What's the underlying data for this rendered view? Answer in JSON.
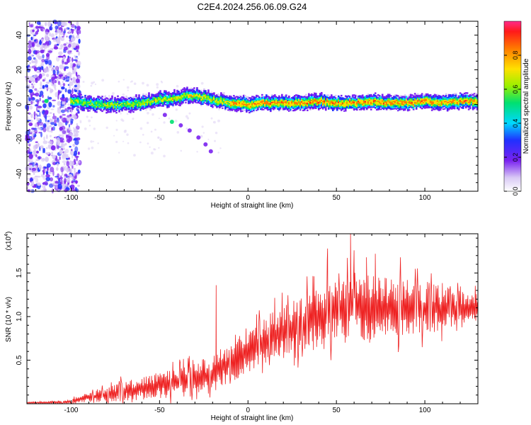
{
  "title": "C2E4.2024.256.06.09.G24",
  "chart_data": [
    {
      "type": "heatmap",
      "xlabel": "Height of straight line (km)",
      "ylabel": "Frequency (Hz)",
      "xlim": [
        -125,
        130
      ],
      "ylim": [
        -50,
        48
      ],
      "xticks": [
        -100,
        -50,
        0,
        50,
        100
      ],
      "yticks": [
        -40,
        -20,
        0,
        20,
        40
      ],
      "colorbar": {
        "label": "Normalized spectral amplitude",
        "range": [
          0,
          1
        ],
        "ticks": [
          "0.0",
          "0.2",
          "0.4",
          "0.6",
          "0.8"
        ]
      },
      "main_track": {
        "x": [
          -100,
          -90,
          -80,
          -70,
          -60,
          -50,
          -45,
          -40,
          -35,
          -30,
          -25,
          -20,
          -15,
          -10,
          0,
          10,
          20,
          30,
          40,
          50,
          60,
          70,
          80,
          90,
          100,
          110,
          120,
          130
        ],
        "y": [
          2,
          1,
          0,
          0,
          1,
          3,
          3,
          4,
          5,
          5,
          4,
          3,
          2,
          1,
          0,
          1,
          1,
          1,
          2,
          1,
          1,
          2,
          1,
          1,
          2,
          1,
          2,
          2
        ]
      },
      "secondary_track": {
        "x": [
          -47,
          -43,
          -38,
          -33,
          -28,
          -24,
          -21
        ],
        "y": [
          -6,
          -10,
          -12,
          -15,
          -19,
          -23,
          -27
        ]
      }
    },
    {
      "type": "line",
      "xlabel": "Height of straight line (km)",
      "ylabel": "SNR (10 * v/v)",
      "y_multiplier": "(x10",
      "y_multiplier_exp": "4",
      "y_multiplier_close": ")",
      "xlim": [
        -125,
        130
      ],
      "ylim": [
        0,
        1.95
      ],
      "xticks": [
        -100,
        -50,
        0,
        50,
        100
      ],
      "yticks": [
        "0.5",
        "1.0",
        "1.5"
      ],
      "ytick_values": [
        0.5,
        1.0,
        1.5
      ],
      "series": [
        {
          "color": "#ee2222",
          "envelope_x": [
            -125,
            -100,
            -95,
            -80,
            -60,
            -40,
            -30,
            -20,
            -10,
            0,
            10,
            20,
            30,
            40,
            50,
            60,
            70,
            80,
            90,
            100,
            110,
            120,
            130
          ],
          "envelope_mean": [
            0.01,
            0.02,
            0.06,
            0.1,
            0.18,
            0.24,
            0.28,
            0.34,
            0.48,
            0.62,
            0.72,
            0.84,
            0.92,
            1.0,
            1.06,
            1.1,
            1.1,
            1.09,
            1.1,
            1.1,
            1.09,
            1.08,
            1.1
          ],
          "envelope_spread": [
            0.01,
            0.02,
            0.05,
            0.08,
            0.12,
            0.16,
            0.18,
            0.2,
            0.22,
            0.24,
            0.26,
            0.28,
            0.3,
            0.32,
            0.34,
            0.36,
            0.34,
            0.32,
            0.3,
            0.26,
            0.24,
            0.2,
            0.14
          ],
          "peak_x": [
            -18,
            45,
            58,
            60,
            67,
            72
          ],
          "peak_y": [
            1.36,
            1.78,
            1.95,
            1.76,
            1.68,
            1.72
          ]
        }
      ]
    }
  ]
}
